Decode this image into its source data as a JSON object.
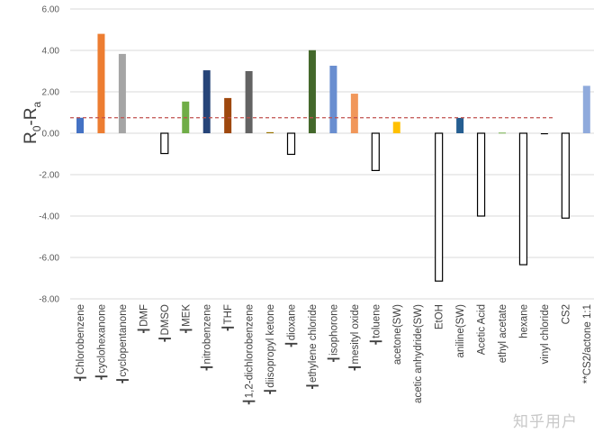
{
  "chart_data": {
    "type": "bar",
    "title": "",
    "xlabel": "",
    "ylabel": "R0-Ra",
    "ylabel_main": "R",
    "ylabel_sub0": "0",
    "ylabel_mid": "-R",
    "ylabel_sub1": "a",
    "ylim": [
      -8,
      6
    ],
    "yticks": [
      6,
      4,
      2,
      0,
      -2,
      -4,
      -6,
      -8
    ],
    "ytick_labels": [
      "6.00",
      "4.00",
      "2.00",
      "0.00",
      "-2.00",
      "-4.00",
      "-6.00",
      "-8.00"
    ],
    "grid": true,
    "reference_line": {
      "value": 0.75,
      "style": "dashed",
      "color": "#c0504d"
    },
    "label_marker": "┫",
    "categories": [
      {
        "label": "Chlorobenzene",
        "marked": true
      },
      {
        "label": "cyclohexanone",
        "marked": true
      },
      {
        "label": "cyclopentanone",
        "marked": true
      },
      {
        "label": "DMF",
        "marked": true
      },
      {
        "label": "DMSO",
        "marked": true
      },
      {
        "label": "MEK",
        "marked": true
      },
      {
        "label": "nitrobenzene",
        "marked": true
      },
      {
        "label": "THF",
        "marked": true
      },
      {
        "label": "1,2-dichlorobenzene",
        "marked": true
      },
      {
        "label": "diisopropyl ketone",
        "marked": true
      },
      {
        "label": "dioxane",
        "marked": true
      },
      {
        "label": "ethylene chloride",
        "marked": true
      },
      {
        "label": "isophorone",
        "marked": true
      },
      {
        "label": "mesityl oxide",
        "marked": true
      },
      {
        "label": "toluene",
        "marked": true
      },
      {
        "label": "acetone(SW)",
        "marked": false
      },
      {
        "label": "acetic anhydride(SW)",
        "marked": false
      },
      {
        "label": "EtOH",
        "marked": false
      },
      {
        "label": "aniline(SW)",
        "marked": false
      },
      {
        "label": "Acetic Acid",
        "marked": false
      },
      {
        "label": "ethyl acetate",
        "marked": false
      },
      {
        "label": "hexane",
        "marked": false
      },
      {
        "label": "vinyl chloride",
        "marked": false
      },
      {
        "label": "CS2",
        "marked": false
      },
      {
        "label": "**CS2/actone 1:1",
        "marked": false
      }
    ],
    "values": [
      0.75,
      4.8,
      3.83,
      0,
      -0.98,
      1.53,
      3.04,
      1.7,
      3.0,
      0.05,
      -1.02,
      4.01,
      3.26,
      1.91,
      -1.8,
      0.55,
      0,
      -7.14,
      0.74,
      -4.0,
      0.03,
      -6.35,
      -0.05,
      -4.1,
      2.29
    ],
    "colors": [
      "#4472c4",
      "#ed7d31",
      "#a5a5a5",
      "#ffffff",
      "#ffffff",
      "#70ad47",
      "#264478",
      "#9e480e",
      "#636363",
      "#997300",
      "#ffffff",
      "#43682b",
      "#698ed0",
      "#f1975a",
      "#ffffff",
      "#ffc000",
      "#ffffff",
      "#ffffff",
      "#255e91",
      "#ffffff",
      "#70ad47",
      "#ffffff",
      "#000000",
      "#ffffff",
      "#8faadc"
    ],
    "outlined_negative": true,
    "legend": "none"
  },
  "watermark": "知乎用户"
}
